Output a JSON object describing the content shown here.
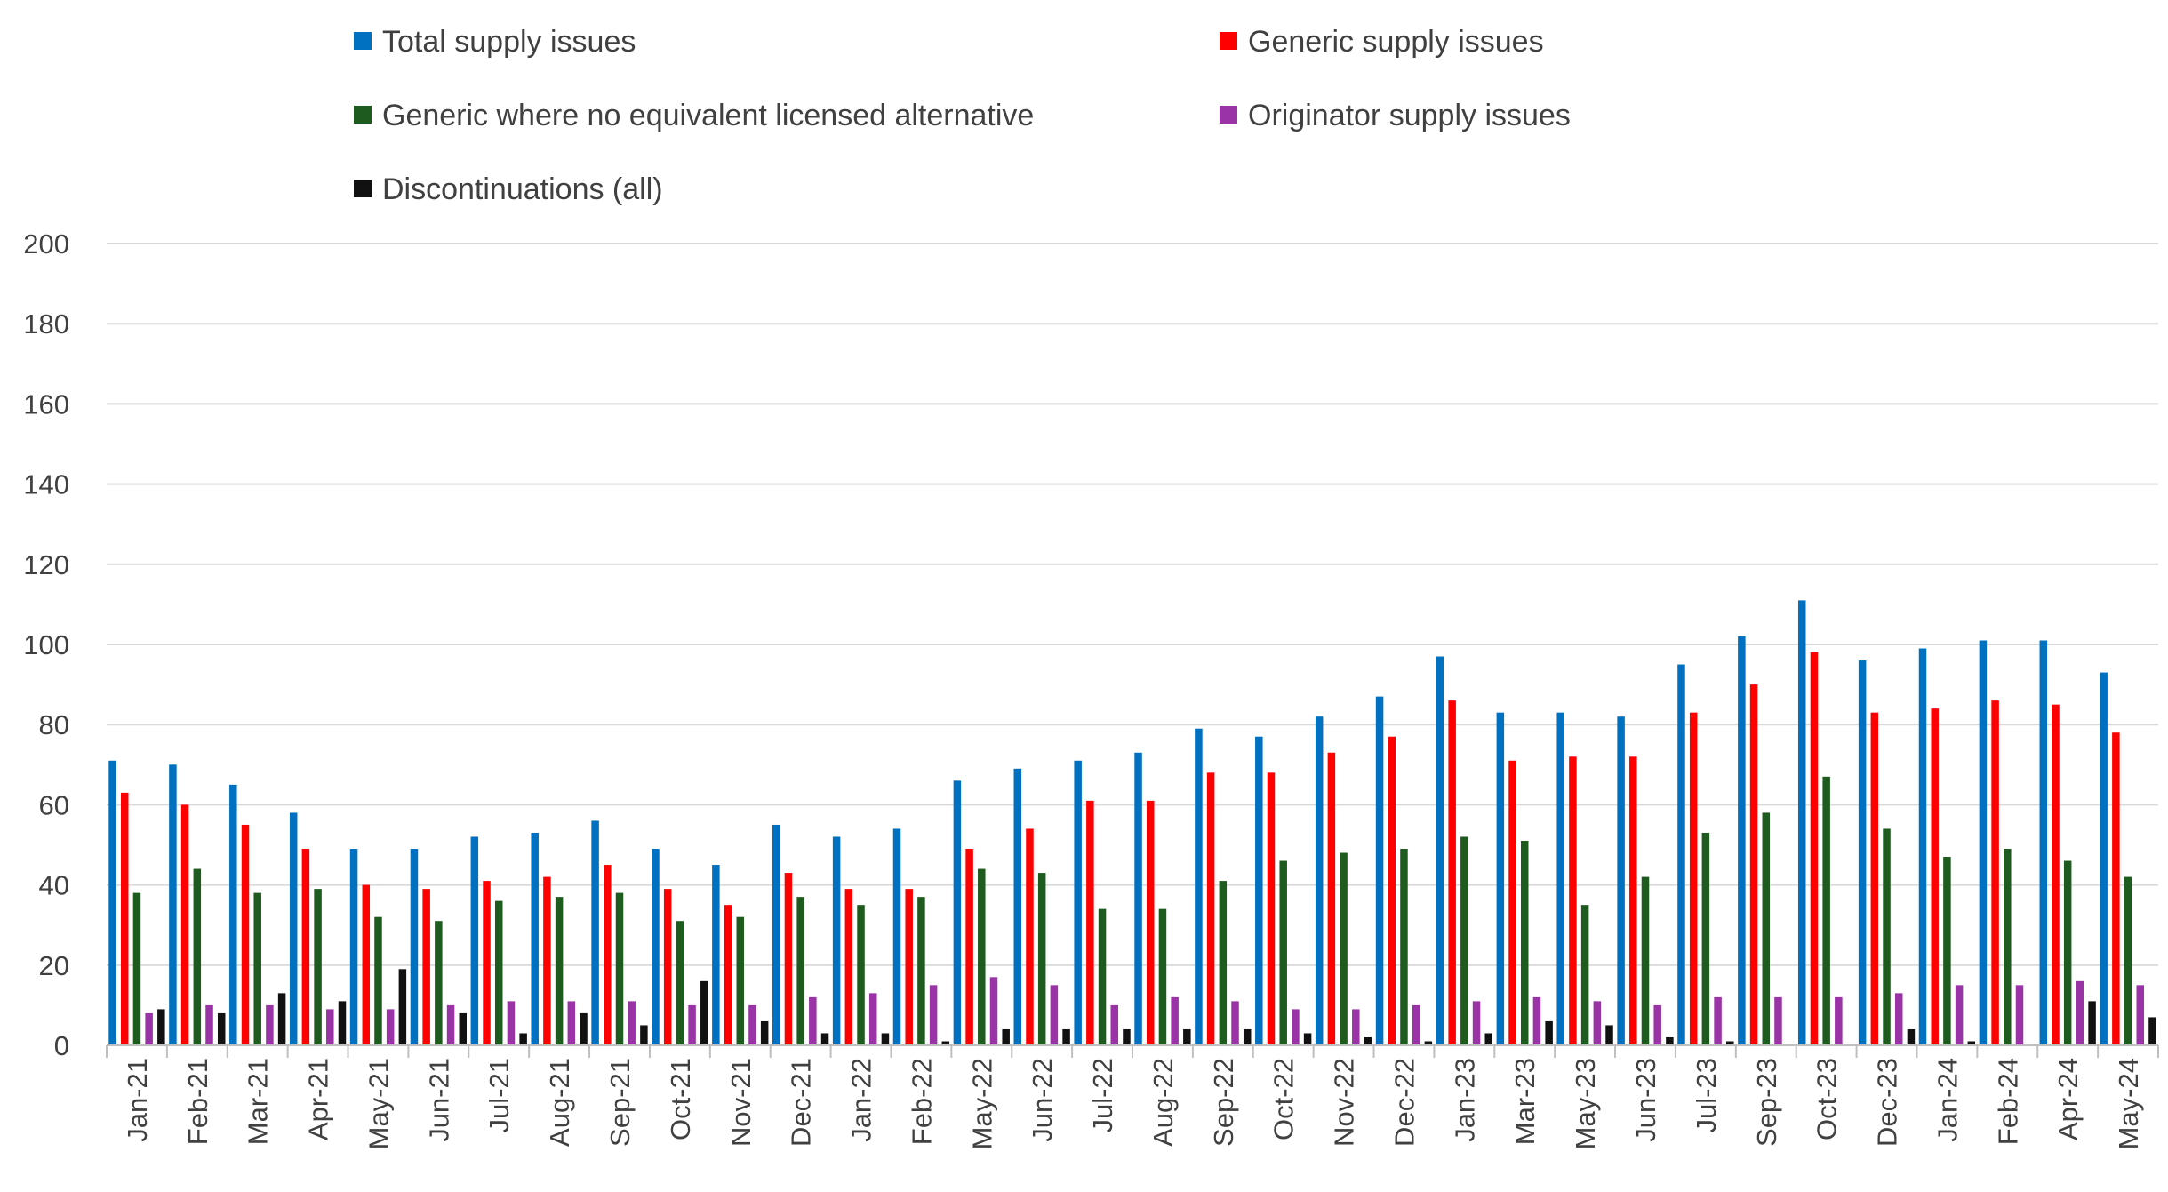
{
  "chart_data": {
    "type": "bar",
    "title": "",
    "xlabel": "",
    "ylabel": "",
    "ylim": [
      0,
      200
    ],
    "yticks": [
      0,
      20,
      40,
      60,
      80,
      100,
      120,
      140,
      160,
      180,
      200
    ],
    "grid": true,
    "legend_position": "top",
    "categories": [
      "Jan-21",
      "Feb-21",
      "Mar-21",
      "Apr-21",
      "May-21",
      "Jun-21",
      "Jul-21",
      "Aug-21",
      "Sep-21",
      "Oct-21",
      "Nov-21",
      "Dec-21",
      "Jan-22",
      "Feb-22",
      "May-22",
      "Jun-22",
      "Jul-22",
      "Aug-22",
      "Sep-22",
      "Oct-22",
      "Nov-22",
      "Dec-22",
      "Jan-23",
      "Mar-23",
      "May-23",
      "Jun-23",
      "Jul-23",
      "Sep-23",
      "Oct-23",
      "Dec-23",
      "Jan-24",
      "Feb-24",
      "Apr-24",
      "May-24"
    ],
    "series": [
      {
        "name": "Total supply issues",
        "color": "#0070C0",
        "values": [
          71,
          70,
          65,
          58,
          49,
          49,
          52,
          53,
          56,
          49,
          45,
          55,
          52,
          54,
          66,
          69,
          71,
          73,
          79,
          77,
          82,
          87,
          97,
          83,
          83,
          82,
          95,
          102,
          111,
          96,
          99,
          101,
          101,
          93
        ]
      },
      {
        "name": "Generic supply issues",
        "color": "#FF0000",
        "values": [
          63,
          60,
          55,
          49,
          40,
          39,
          41,
          42,
          45,
          39,
          35,
          43,
          39,
          39,
          49,
          54,
          61,
          61,
          68,
          68,
          73,
          77,
          86,
          71,
          72,
          72,
          83,
          90,
          98,
          83,
          84,
          86,
          85,
          78
        ]
      },
      {
        "name": "Generic where no equivalent licensed alternative",
        "color": "#1E5B1E",
        "values": [
          38,
          44,
          38,
          39,
          32,
          31,
          36,
          37,
          38,
          31,
          32,
          37,
          35,
          37,
          44,
          43,
          34,
          34,
          41,
          46,
          48,
          49,
          52,
          51,
          35,
          42,
          53,
          58,
          67,
          54,
          47,
          49,
          46,
          42
        ]
      },
      {
        "name": "Originator supply issues",
        "color": "#9933A6",
        "values": [
          8,
          10,
          10,
          9,
          9,
          10,
          11,
          11,
          11,
          10,
          10,
          12,
          13,
          15,
          17,
          15,
          10,
          12,
          11,
          9,
          9,
          10,
          11,
          12,
          11,
          10,
          12,
          12,
          12,
          13,
          15,
          15,
          16,
          15
        ]
      },
      {
        "name": "Discontinuations (all)",
        "color": "#111111",
        "values": [
          9,
          8,
          13,
          11,
          19,
          8,
          3,
          8,
          5,
          16,
          6,
          3,
          3,
          1,
          4,
          4,
          4,
          4,
          4,
          3,
          2,
          1,
          3,
          6,
          5,
          2,
          1,
          0,
          0,
          4,
          1,
          0,
          11,
          7
        ]
      }
    ]
  }
}
